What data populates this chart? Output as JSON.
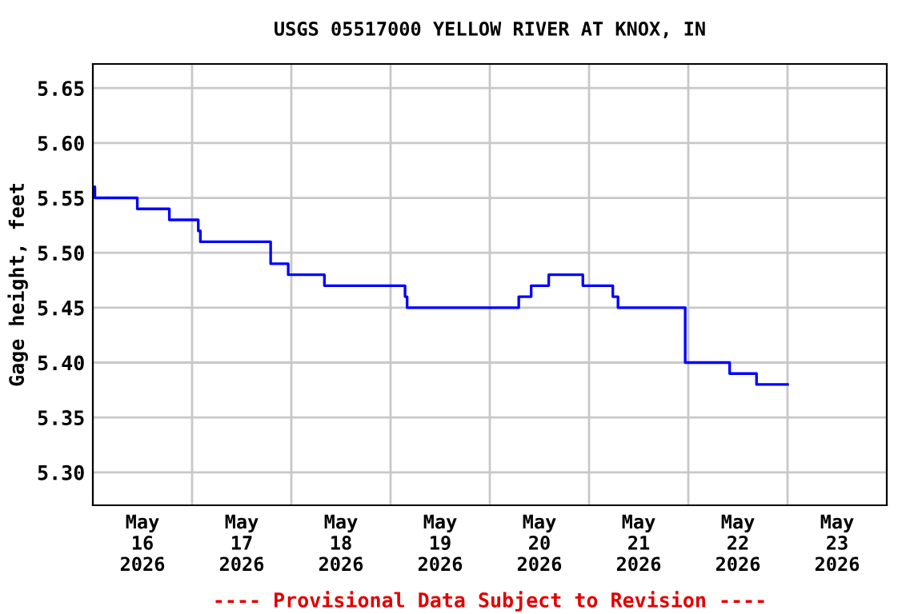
{
  "chart_data": {
    "type": "step",
    "title": "USGS 05517000 YELLOW RIVER AT KNOX, IN",
    "ylabel": "Gage height, feet",
    "annotations": [
      "---- Provisional Data Subject to Revision ----"
    ],
    "x": [
      "2026-05-16T00:00",
      "2026-05-16T00:30",
      "2026-05-16T10:45",
      "2026-05-16T18:30",
      "2026-05-17T01:30",
      "2026-05-17T02:00",
      "2026-05-17T19:00",
      "2026-05-17T23:15",
      "2026-05-18T08:00",
      "2026-05-19T03:30",
      "2026-05-19T04:00",
      "2026-05-20T07:00",
      "2026-05-20T10:00",
      "2026-05-20T14:15",
      "2026-05-20T22:30",
      "2026-05-21T05:45",
      "2026-05-21T07:00",
      "2026-05-21T23:15",
      "2026-05-22T10:00",
      "2026-05-22T16:30",
      "2026-05-23T00:00"
    ],
    "series": [
      {
        "color": "#0000ff",
        "values": [
          5.56,
          5.55,
          5.54,
          5.53,
          5.52,
          5.51,
          5.49,
          5.48,
          5.47,
          5.46,
          5.45,
          5.46,
          5.47,
          5.48,
          5.47,
          5.46,
          5.45,
          5.4,
          5.39,
          5.38,
          5.38
        ]
      }
    ],
    "xlim": [
      "2026-05-16T00:00",
      "2026-05-24T00:00"
    ],
    "xticks": [
      {
        "value": "2026-05-16T12:00",
        "label": "May\n16\n2026"
      },
      {
        "value": "2026-05-17T00:00",
        "label": null
      },
      {
        "value": "2026-05-17T12:00",
        "label": "May\n17\n2026"
      },
      {
        "value": "2026-05-18T00:00",
        "label": null
      },
      {
        "value": "2026-05-18T12:00",
        "label": "May\n18\n2026"
      },
      {
        "value": "2026-05-19T00:00",
        "label": null
      },
      {
        "value": "2026-05-19T12:00",
        "label": "May\n19\n2026"
      },
      {
        "value": "2026-05-20T00:00",
        "label": null
      },
      {
        "value": "2026-05-20T12:00",
        "label": "May\n20\n2026"
      },
      {
        "value": "2026-05-21T00:00",
        "label": null
      },
      {
        "value": "2026-05-21T12:00",
        "label": "May\n21\n2026"
      },
      {
        "value": "2026-05-22T00:00",
        "label": null
      },
      {
        "value": "2026-05-22T12:00",
        "label": "May\n22\n2026"
      },
      {
        "value": "2026-05-23T00:00",
        "label": null
      },
      {
        "value": "2026-05-23T12:00",
        "label": "May\n23\n2026"
      }
    ],
    "ylim": [
      5.27,
      5.672
    ],
    "yticks": [
      {
        "value": 5.3,
        "label": "5.30"
      },
      {
        "value": 5.35,
        "label": "5.35"
      },
      {
        "value": 5.4,
        "label": "5.40"
      },
      {
        "value": 5.45,
        "label": "5.45"
      },
      {
        "value": 5.5,
        "label": "5.50"
      },
      {
        "value": 5.55,
        "label": "5.55"
      },
      {
        "value": 5.6,
        "label": "5.60"
      },
      {
        "value": 5.65,
        "label": "5.65"
      }
    ],
    "grid": true
  }
}
